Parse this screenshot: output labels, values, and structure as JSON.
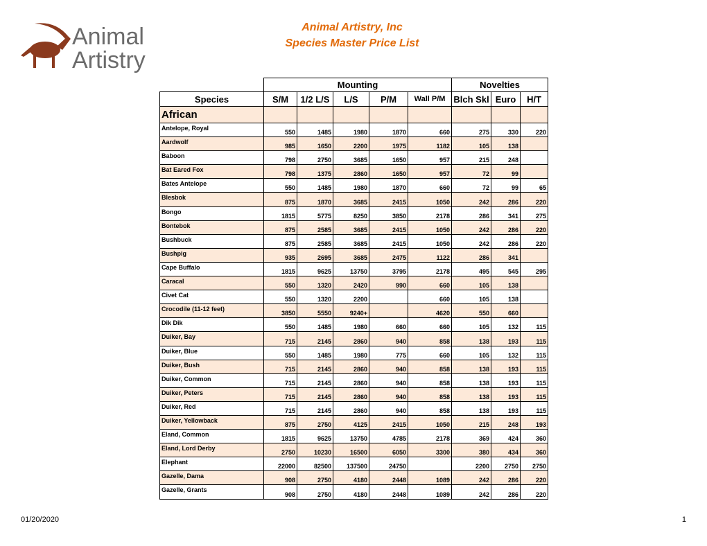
{
  "header": {
    "logo": {
      "line1": "Animal",
      "line2": "Artistry"
    },
    "title": "Animal Artistry, Inc",
    "subtitle": "Species Master Price List"
  },
  "table": {
    "groups": [
      "Mounting",
      "Novelties"
    ],
    "columns": [
      "Species",
      "S/M",
      "1/2 L/S",
      "L/S",
      "P/M",
      "Wall P/M",
      "Blch Skl",
      "Euro",
      "H/T"
    ],
    "section": "African",
    "rows": [
      [
        "Antelope, Royal",
        550,
        1485,
        1980,
        1870,
        660,
        275,
        330,
        220
      ],
      [
        "Aardwolf",
        985,
        1650,
        2200,
        1975,
        1182,
        105,
        138,
        null
      ],
      [
        "Baboon",
        798,
        2750,
        3685,
        1650,
        957,
        215,
        248,
        null
      ],
      [
        "Bat Eared Fox",
        798,
        1375,
        2860,
        1650,
        957,
        72,
        99,
        null
      ],
      [
        "Bates Antelope",
        550,
        1485,
        1980,
        1870,
        660,
        72,
        99,
        65
      ],
      [
        "Blesbok",
        875,
        1870,
        3685,
        2415,
        1050,
        242,
        286,
        220
      ],
      [
        "Bongo",
        1815,
        5775,
        8250,
        3850,
        2178,
        286,
        341,
        275
      ],
      [
        "Bontebok",
        875,
        2585,
        3685,
        2415,
        1050,
        242,
        286,
        220
      ],
      [
        "Bushbuck",
        875,
        2585,
        3685,
        2415,
        1050,
        242,
        286,
        220
      ],
      [
        "Bushpig",
        935,
        2695,
        3685,
        2475,
        1122,
        286,
        341,
        null
      ],
      [
        "Cape Buffalo",
        1815,
        9625,
        13750,
        3795,
        2178,
        495,
        545,
        295
      ],
      [
        "Caracal",
        550,
        1320,
        2420,
        990,
        660,
        105,
        138,
        null
      ],
      [
        "Civet Cat",
        550,
        1320,
        2200,
        null,
        660,
        105,
        138,
        null
      ],
      [
        "Crocodile (11-12 feet)",
        3850,
        5550,
        "9240+",
        null,
        4620,
        550,
        660,
        null
      ],
      [
        "Dik Dik",
        550,
        1485,
        1980,
        660,
        660,
        105,
        132,
        115
      ],
      [
        "Duiker, Bay",
        715,
        2145,
        2860,
        940,
        858,
        138,
        193,
        115
      ],
      [
        "Duiker, Blue",
        550,
        1485,
        1980,
        775,
        660,
        105,
        132,
        115
      ],
      [
        "Duiker, Bush",
        715,
        2145,
        2860,
        940,
        858,
        138,
        193,
        115
      ],
      [
        "Duiker, Common",
        715,
        2145,
        2860,
        940,
        858,
        138,
        193,
        115
      ],
      [
        "Duiker, Peters",
        715,
        2145,
        2860,
        940,
        858,
        138,
        193,
        115
      ],
      [
        "Duiker, Red",
        715,
        2145,
        2860,
        940,
        858,
        138,
        193,
        115
      ],
      [
        "Duiker, Yellowback",
        875,
        2750,
        4125,
        2415,
        1050,
        215,
        248,
        193
      ],
      [
        "Eland, Common",
        1815,
        9625,
        13750,
        4785,
        2178,
        369,
        424,
        360
      ],
      [
        "Eland, Lord Derby",
        2750,
        10230,
        16500,
        6050,
        3300,
        380,
        434,
        360
      ],
      [
        "Elephant",
        22000,
        82500,
        137500,
        24750,
        null,
        2200,
        2750,
        2750
      ],
      [
        "Gazelle, Dama",
        908,
        2750,
        4180,
        2448,
        1089,
        242,
        286,
        220
      ],
      [
        "Gazelle, Grants",
        908,
        2750,
        4180,
        2448,
        1089,
        242,
        286,
        220
      ]
    ]
  },
  "footer": {
    "date": "01/20/2020",
    "page": "1"
  }
}
